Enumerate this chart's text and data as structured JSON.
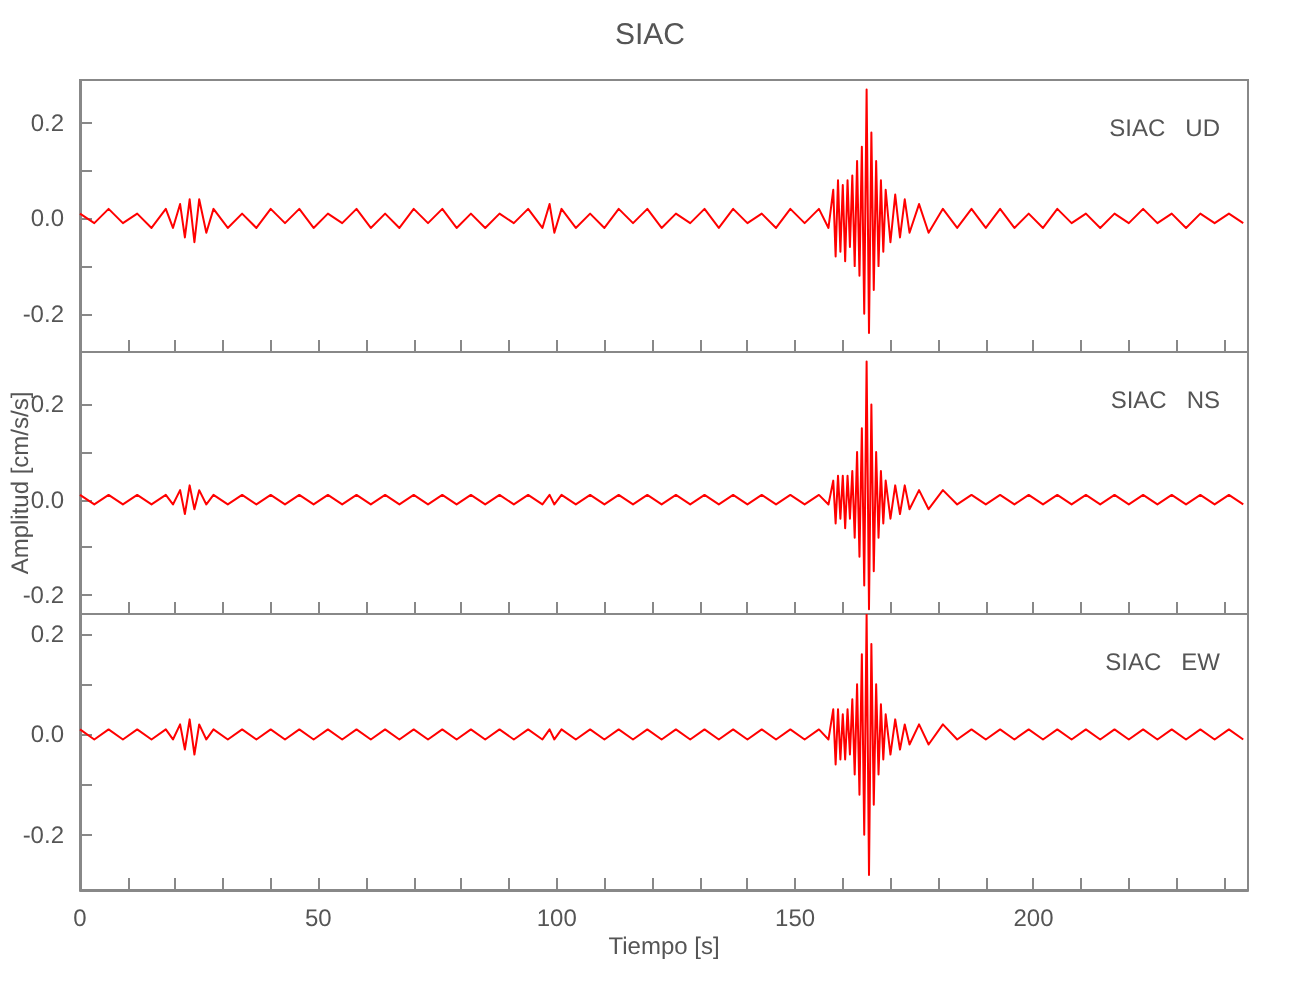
{
  "chart_data": [
    {
      "type": "line",
      "title": "SIAC",
      "annotations": [
        "SIAC   UD"
      ],
      "tick_labels": "y",
      "xlim": [
        0,
        245
      ],
      "ylim": [
        -0.28,
        0.29
      ],
      "xticks": [
        {
          "value": 0,
          "label": null
        },
        {
          "value": 10,
          "label": null
        },
        {
          "value": 20,
          "label": null
        },
        {
          "value": 30,
          "label": null
        },
        {
          "value": 40,
          "label": null
        },
        {
          "value": 50,
          "label": null
        },
        {
          "value": 60,
          "label": null
        },
        {
          "value": 70,
          "label": null
        },
        {
          "value": 80,
          "label": null
        },
        {
          "value": 90,
          "label": null
        },
        {
          "value": 100,
          "label": null
        },
        {
          "value": 110,
          "label": null
        },
        {
          "value": 120,
          "label": null
        },
        {
          "value": 130,
          "label": null
        },
        {
          "value": 140,
          "label": null
        },
        {
          "value": 150,
          "label": null
        },
        {
          "value": 160,
          "label": null
        },
        {
          "value": 170,
          "label": null
        },
        {
          "value": 180,
          "label": null
        },
        {
          "value": 190,
          "label": null
        },
        {
          "value": 200,
          "label": null
        },
        {
          "value": 210,
          "label": null
        },
        {
          "value": 220,
          "label": null
        },
        {
          "value": 230,
          "label": null
        },
        {
          "value": 240,
          "label": null
        }
      ],
      "yticks": [
        {
          "value": -0.2,
          "label": "-0.2"
        },
        {
          "value": -0.1,
          "label": null
        },
        {
          "value": 0,
          "label": "0.0"
        },
        {
          "value": 0.1,
          "label": null
        },
        {
          "value": 0.2,
          "label": "0.2"
        }
      ],
      "x": [
        0,
        3,
        6,
        9,
        12,
        15,
        18,
        19.5,
        21,
        22,
        23,
        24,
        25,
        26.5,
        28,
        31,
        34,
        37,
        40,
        43,
        46,
        49,
        52,
        55,
        58,
        61,
        64,
        67,
        70,
        73,
        76,
        79,
        82,
        85,
        88,
        91,
        94,
        97,
        98.5,
        99.5,
        101,
        104,
        107,
        110,
        113,
        116,
        119,
        122,
        125,
        128,
        131,
        134,
        137,
        140,
        143,
        146,
        149,
        152,
        155,
        157,
        158,
        158.5,
        159,
        159.5,
        160,
        160.5,
        161,
        161.5,
        162,
        162.5,
        163,
        163.5,
        164,
        164.5,
        165,
        165.5,
        166,
        166.5,
        167,
        167.5,
        168,
        168.5,
        169,
        170,
        171,
        172,
        173,
        174,
        176,
        178,
        181,
        184,
        187,
        190,
        193,
        196,
        199,
        202,
        205,
        208,
        211,
        214,
        217,
        220,
        223,
        226,
        229,
        232,
        235,
        238,
        241,
        244
      ],
      "series": [
        {
          "color": "#ff0000",
          "values": [
            0.01,
            -0.01,
            0.02,
            -0.01,
            0.01,
            -0.02,
            0.02,
            -0.02,
            0.03,
            -0.04,
            0.04,
            -0.05,
            0.04,
            -0.03,
            0.02,
            -0.02,
            0.01,
            -0.02,
            0.02,
            -0.01,
            0.02,
            -0.02,
            0.01,
            -0.01,
            0.02,
            -0.02,
            0.01,
            -0.02,
            0.02,
            -0.01,
            0.02,
            -0.02,
            0.01,
            -0.02,
            0.01,
            -0.01,
            0.02,
            -0.02,
            0.03,
            -0.03,
            0.02,
            -0.02,
            0.01,
            -0.02,
            0.02,
            -0.01,
            0.02,
            -0.02,
            0.01,
            -0.01,
            0.02,
            -0.02,
            0.02,
            -0.01,
            0.01,
            -0.02,
            0.02,
            -0.01,
            0.02,
            -0.02,
            0.06,
            -0.08,
            0.08,
            -0.07,
            0.07,
            -0.09,
            0.08,
            -0.06,
            0.09,
            -0.1,
            0.12,
            -0.12,
            0.15,
            -0.2,
            0.27,
            -0.24,
            0.18,
            -0.15,
            0.12,
            -0.1,
            0.08,
            -0.07,
            0.06,
            -0.05,
            0.05,
            -0.04,
            0.04,
            -0.03,
            0.03,
            -0.03,
            0.02,
            -0.02,
            0.02,
            -0.02,
            0.02,
            -0.02,
            0.01,
            -0.02,
            0.02,
            -0.01,
            0.01,
            -0.02,
            0.01,
            -0.01,
            0.02,
            -0.01,
            0.01,
            -0.02,
            0.01,
            -0.01,
            0.01,
            -0.01
          ]
        }
      ]
    },
    {
      "type": "line",
      "ylabel": "Amplitud [cm/s/s]",
      "annotations": [
        "SIAC   NS"
      ],
      "tick_labels": "y",
      "xlim": [
        0,
        245
      ],
      "ylim": [
        -0.24,
        0.31
      ],
      "xticks": [
        {
          "value": 0,
          "label": null
        },
        {
          "value": 10,
          "label": null
        },
        {
          "value": 20,
          "label": null
        },
        {
          "value": 30,
          "label": null
        },
        {
          "value": 40,
          "label": null
        },
        {
          "value": 50,
          "label": null
        },
        {
          "value": 60,
          "label": null
        },
        {
          "value": 70,
          "label": null
        },
        {
          "value": 80,
          "label": null
        },
        {
          "value": 90,
          "label": null
        },
        {
          "value": 100,
          "label": null
        },
        {
          "value": 110,
          "label": null
        },
        {
          "value": 120,
          "label": null
        },
        {
          "value": 130,
          "label": null
        },
        {
          "value": 140,
          "label": null
        },
        {
          "value": 150,
          "label": null
        },
        {
          "value": 160,
          "label": null
        },
        {
          "value": 170,
          "label": null
        },
        {
          "value": 180,
          "label": null
        },
        {
          "value": 190,
          "label": null
        },
        {
          "value": 200,
          "label": null
        },
        {
          "value": 210,
          "label": null
        },
        {
          "value": 220,
          "label": null
        },
        {
          "value": 230,
          "label": null
        },
        {
          "value": 240,
          "label": null
        }
      ],
      "yticks": [
        {
          "value": -0.2,
          "label": "-0.2"
        },
        {
          "value": -0.1,
          "label": null
        },
        {
          "value": 0,
          "label": "0.0"
        },
        {
          "value": 0.1,
          "label": null
        },
        {
          "value": 0.2,
          "label": "0.2"
        }
      ],
      "x": [
        0,
        3,
        6,
        9,
        12,
        15,
        18,
        19.5,
        21,
        22,
        23,
        24,
        25,
        26.5,
        28,
        31,
        34,
        37,
        40,
        43,
        46,
        49,
        52,
        55,
        58,
        61,
        64,
        67,
        70,
        73,
        76,
        79,
        82,
        85,
        88,
        91,
        94,
        97,
        98.5,
        99.5,
        101,
        104,
        107,
        110,
        113,
        116,
        119,
        122,
        125,
        128,
        131,
        134,
        137,
        140,
        143,
        146,
        149,
        152,
        155,
        157,
        158,
        158.5,
        159,
        159.5,
        160,
        160.5,
        161,
        161.5,
        162,
        162.5,
        163,
        163.5,
        164,
        164.5,
        165,
        165.5,
        166,
        166.5,
        167,
        167.5,
        168,
        168.5,
        169,
        170,
        171,
        172,
        173,
        174,
        176,
        178,
        181,
        184,
        187,
        190,
        193,
        196,
        199,
        202,
        205,
        208,
        211,
        214,
        217,
        220,
        223,
        226,
        229,
        232,
        235,
        238,
        241,
        244
      ],
      "series": [
        {
          "color": "#ff0000",
          "values": [
            0.01,
            -0.01,
            0.01,
            -0.01,
            0.01,
            -0.01,
            0.01,
            -0.01,
            0.02,
            -0.03,
            0.03,
            -0.02,
            0.02,
            -0.01,
            0.01,
            -0.01,
            0.01,
            -0.01,
            0.01,
            -0.01,
            0.01,
            -0.01,
            0.01,
            -0.01,
            0.01,
            -0.01,
            0.01,
            -0.01,
            0.01,
            -0.01,
            0.01,
            -0.01,
            0.01,
            -0.01,
            0.01,
            -0.01,
            0.01,
            -0.01,
            0.01,
            -0.01,
            0.01,
            -0.01,
            0.01,
            -0.01,
            0.01,
            -0.01,
            0.01,
            -0.01,
            0.01,
            -0.01,
            0.01,
            -0.01,
            0.01,
            -0.01,
            0.01,
            -0.01,
            0.01,
            -0.01,
            0.01,
            -0.01,
            0.04,
            -0.05,
            0.05,
            -0.04,
            0.05,
            -0.06,
            0.05,
            -0.04,
            0.06,
            -0.08,
            0.1,
            -0.12,
            0.15,
            -0.18,
            0.29,
            -0.23,
            0.2,
            -0.15,
            0.1,
            -0.08,
            0.06,
            -0.05,
            0.04,
            -0.04,
            0.03,
            -0.03,
            0.03,
            -0.02,
            0.02,
            -0.02,
            0.02,
            -0.01,
            0.01,
            -0.01,
            0.01,
            -0.01,
            0.01,
            -0.01,
            0.01,
            -0.01,
            0.01,
            -0.01,
            0.01,
            -0.01,
            0.01,
            -0.01,
            0.01,
            -0.01,
            0.01,
            -0.01,
            0.01,
            -0.01
          ]
        }
      ]
    },
    {
      "type": "line",
      "xlabel": "Tiempo [s]",
      "annotations": [
        "SIAC   EW"
      ],
      "xlim": [
        0,
        245
      ],
      "ylim": [
        -0.31,
        0.24
      ],
      "xticks": [
        {
          "value": 0,
          "label": "0"
        },
        {
          "value": 10,
          "label": null
        },
        {
          "value": 20,
          "label": null
        },
        {
          "value": 30,
          "label": null
        },
        {
          "value": 40,
          "label": null
        },
        {
          "value": 50,
          "label": "50"
        },
        {
          "value": 60,
          "label": null
        },
        {
          "value": 70,
          "label": null
        },
        {
          "value": 80,
          "label": null
        },
        {
          "value": 90,
          "label": null
        },
        {
          "value": 100,
          "label": "100"
        },
        {
          "value": 110,
          "label": null
        },
        {
          "value": 120,
          "label": null
        },
        {
          "value": 130,
          "label": null
        },
        {
          "value": 140,
          "label": null
        },
        {
          "value": 150,
          "label": "150"
        },
        {
          "value": 160,
          "label": null
        },
        {
          "value": 170,
          "label": null
        },
        {
          "value": 180,
          "label": null
        },
        {
          "value": 190,
          "label": null
        },
        {
          "value": 200,
          "label": "200"
        },
        {
          "value": 210,
          "label": null
        },
        {
          "value": 220,
          "label": null
        },
        {
          "value": 230,
          "label": null
        },
        {
          "value": 240,
          "label": null
        }
      ],
      "yticks": [
        {
          "value": -0.2,
          "label": "-0.2"
        },
        {
          "value": -0.1,
          "label": null
        },
        {
          "value": 0,
          "label": "0.0"
        },
        {
          "value": 0.1,
          "label": null
        },
        {
          "value": 0.2,
          "label": "0.2"
        }
      ],
      "x": [
        0,
        3,
        6,
        9,
        12,
        15,
        18,
        19.5,
        21,
        22,
        23,
        24,
        25,
        26.5,
        28,
        31,
        34,
        37,
        40,
        43,
        46,
        49,
        52,
        55,
        58,
        61,
        64,
        67,
        70,
        73,
        76,
        79,
        82,
        85,
        88,
        91,
        94,
        97,
        98.5,
        99.5,
        101,
        104,
        107,
        110,
        113,
        116,
        119,
        122,
        125,
        128,
        131,
        134,
        137,
        140,
        143,
        146,
        149,
        152,
        155,
        157,
        158,
        158.5,
        159,
        159.5,
        160,
        160.5,
        161,
        161.5,
        162,
        162.5,
        163,
        163.5,
        164,
        164.5,
        165,
        165.5,
        166,
        166.5,
        167,
        167.5,
        168,
        168.5,
        169,
        170,
        171,
        172,
        173,
        174,
        176,
        178,
        181,
        184,
        187,
        190,
        193,
        196,
        199,
        202,
        205,
        208,
        211,
        214,
        217,
        220,
        223,
        226,
        229,
        232,
        235,
        238,
        241,
        244
      ],
      "series": [
        {
          "color": "#ff0000",
          "values": [
            0.01,
            -0.01,
            0.01,
            -0.01,
            0.01,
            -0.01,
            0.01,
            -0.01,
            0.02,
            -0.03,
            0.03,
            -0.04,
            0.02,
            -0.01,
            0.01,
            -0.01,
            0.01,
            -0.01,
            0.01,
            -0.01,
            0.01,
            -0.01,
            0.01,
            -0.01,
            0.01,
            -0.01,
            0.01,
            -0.01,
            0.01,
            -0.01,
            0.01,
            -0.01,
            0.01,
            -0.01,
            0.01,
            -0.01,
            0.01,
            -0.01,
            0.01,
            -0.01,
            0.01,
            -0.01,
            0.01,
            -0.01,
            0.01,
            -0.01,
            0.01,
            -0.01,
            0.01,
            -0.01,
            0.01,
            -0.01,
            0.01,
            -0.01,
            0.01,
            -0.01,
            0.01,
            -0.01,
            0.01,
            -0.01,
            0.05,
            -0.06,
            0.05,
            -0.05,
            0.04,
            -0.05,
            0.05,
            -0.04,
            0.07,
            -0.08,
            0.1,
            -0.12,
            0.16,
            -0.2,
            0.24,
            -0.28,
            0.18,
            -0.14,
            0.1,
            -0.08,
            0.06,
            -0.05,
            0.04,
            -0.04,
            0.03,
            -0.03,
            0.02,
            -0.02,
            0.02,
            -0.02,
            0.02,
            -0.01,
            0.01,
            -0.01,
            0.01,
            -0.01,
            0.01,
            -0.01,
            0.01,
            -0.01,
            0.01,
            -0.01,
            0.01,
            -0.01,
            0.01,
            -0.01,
            0.01,
            -0.01,
            0.01,
            -0.01,
            0.01,
            -0.01
          ]
        }
      ]
    }
  ]
}
